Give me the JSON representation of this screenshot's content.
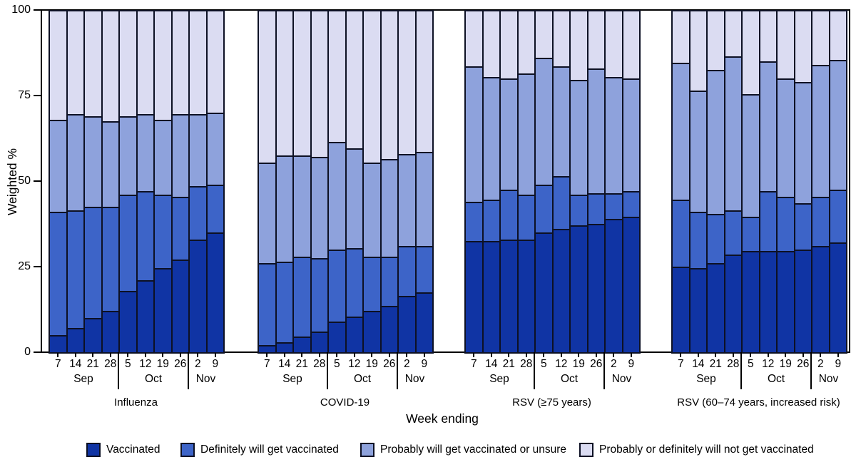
{
  "chart_data": {
    "type": "bar",
    "stacked": true,
    "orientation": "vertical",
    "ylabel": "Weighted %",
    "xlabel": "Week ending",
    "ylim": [
      0,
      100
    ],
    "yticks": [
      0,
      25,
      50,
      75,
      100
    ],
    "grid": false,
    "legend_position": "bottom",
    "stack_order": "bottom-to-top",
    "series_names": [
      "Vaccinated",
      "Definitely will get vaccinated",
      "Probably will get vaccinated or unsure",
      "Probably or definitely will not get vaccinated"
    ],
    "colors": [
      "#1034a4",
      "#3d64c8",
      "#8ea2dc",
      "#dbdcf2"
    ],
    "bar_border_color": "#0d1124",
    "week_labels": [
      "7",
      "14",
      "21",
      "28",
      "5",
      "12",
      "19",
      "26",
      "2",
      "9"
    ],
    "month_groups": [
      {
        "label": "Sep",
        "span": 4
      },
      {
        "label": "Oct",
        "span": 4
      },
      {
        "label": "Nov",
        "span": 2
      }
    ],
    "panels": [
      {
        "title": "Influenza",
        "values": [
          [
            5,
            36,
            27,
            32
          ],
          [
            7,
            34.5,
            28,
            30.5
          ],
          [
            10,
            32.5,
            26.5,
            31
          ],
          [
            12,
            30.5,
            25,
            32.5
          ],
          [
            18,
            28,
            23,
            31
          ],
          [
            21,
            26,
            22.5,
            30.5
          ],
          [
            24.5,
            21.5,
            22,
            32
          ],
          [
            27,
            18.5,
            24,
            30.5
          ],
          [
            33,
            15.5,
            21,
            30.5
          ],
          [
            35,
            14,
            21,
            30
          ]
        ]
      },
      {
        "title": "COVID-19",
        "values": [
          [
            2,
            24,
            29.5,
            44.5
          ],
          [
            3,
            23.5,
            31,
            42.5
          ],
          [
            4.5,
            23.5,
            29.5,
            42.5
          ],
          [
            6,
            21.5,
            29.5,
            43
          ],
          [
            9,
            21,
            31.5,
            38.5
          ],
          [
            10.5,
            20,
            29,
            40.5
          ],
          [
            12,
            16,
            27.5,
            44.5
          ],
          [
            13.5,
            14.5,
            28.5,
            43.5
          ],
          [
            16.5,
            14.5,
            27,
            42
          ],
          [
            17.5,
            13.5,
            27.5,
            41.5
          ]
        ]
      },
      {
        "title": "RSV (≥75 years)",
        "values": [
          [
            32.5,
            11.5,
            39.5,
            16.5
          ],
          [
            32.5,
            12,
            36,
            19.5
          ],
          [
            33,
            14.5,
            32.5,
            20
          ],
          [
            33,
            13,
            35.5,
            18.5
          ],
          [
            35,
            14,
            37,
            14
          ],
          [
            36,
            15.5,
            32,
            16.5
          ],
          [
            37,
            9,
            33.5,
            20.5
          ],
          [
            37.5,
            9,
            36.5,
            17
          ],
          [
            39,
            7.5,
            34,
            19.5
          ],
          [
            39.5,
            7.5,
            33,
            20
          ]
        ]
      },
      {
        "title": "RSV (60–74 years, increased risk)",
        "values": [
          [
            25,
            19.5,
            40,
            15.5
          ],
          [
            24.5,
            16.5,
            35.5,
            23.5
          ],
          [
            26,
            14.5,
            42,
            17.5
          ],
          [
            28.5,
            13,
            45,
            13.5
          ],
          [
            29.5,
            10,
            36,
            24.5
          ],
          [
            29.5,
            17.5,
            38,
            15
          ],
          [
            29.5,
            16,
            34.5,
            20
          ],
          [
            30,
            13.5,
            35.5,
            21
          ],
          [
            31,
            14.5,
            38.5,
            16
          ],
          [
            32,
            15.5,
            38,
            14.5
          ]
        ]
      }
    ]
  }
}
